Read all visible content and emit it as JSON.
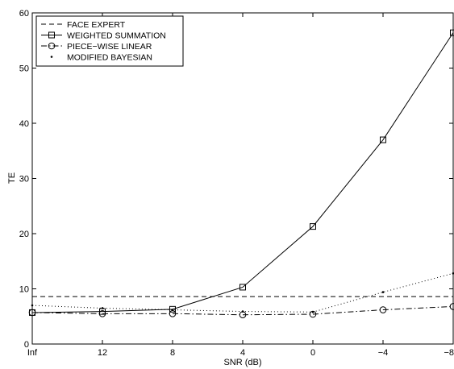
{
  "chart_data": {
    "type": "line",
    "title": "",
    "xlabel": "SNR (dB)",
    "ylabel": "TE",
    "categories": [
      "Inf",
      "12",
      "8",
      "4",
      "0",
      "−4",
      "−8"
    ],
    "ylim": [
      0,
      60
    ],
    "yticks": [
      0,
      10,
      20,
      30,
      40,
      50,
      60
    ],
    "grid": false,
    "legend_position": "top-left",
    "series": [
      {
        "name": "FACE EXPERT",
        "values": [
          8.6,
          8.6,
          8.6,
          8.6,
          8.6,
          8.6,
          8.6
        ],
        "style": "dashed",
        "marker": "none",
        "color": "#000000"
      },
      {
        "name": "WEIGHTED SUMMATION",
        "values": [
          5.7,
          5.9,
          6.3,
          10.3,
          21.3,
          37.0,
          56.4
        ],
        "style": "solid",
        "marker": "square",
        "color": "#000000"
      },
      {
        "name": "PIECE−WISE LINEAR",
        "values": [
          5.7,
          5.5,
          5.5,
          5.3,
          5.4,
          6.2,
          6.8
        ],
        "style": "dashdot",
        "marker": "circle",
        "color": "#000000"
      },
      {
        "name": "MODIFIED BAYESIAN",
        "values": [
          7.0,
          6.5,
          6.2,
          5.9,
          5.8,
          9.4,
          12.8
        ],
        "style": "dotted",
        "marker": "point",
        "color": "#000000"
      }
    ]
  }
}
